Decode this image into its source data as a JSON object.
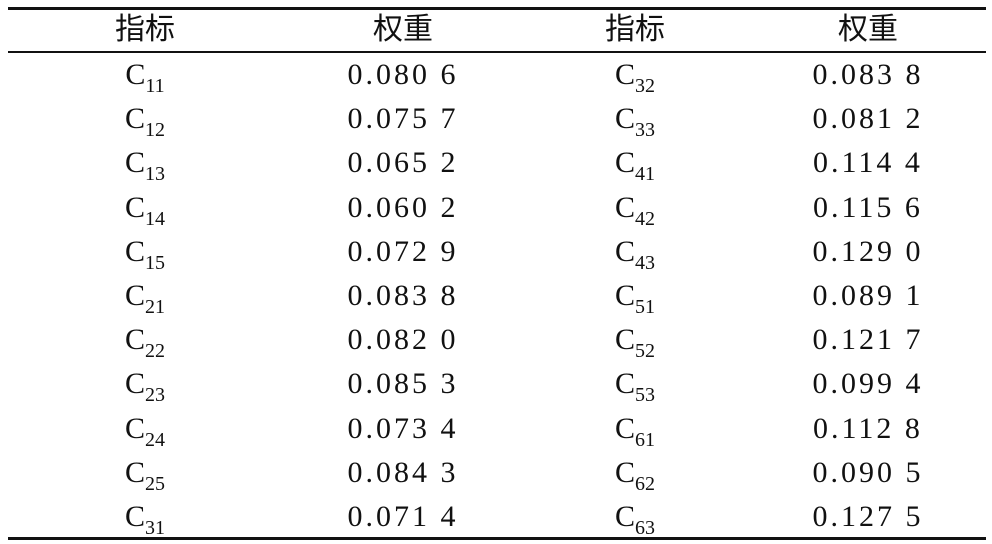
{
  "table": {
    "header": [
      "指标",
      "权重",
      "指标",
      "权重"
    ],
    "rows": [
      [
        {
          "base": "C",
          "sub": "11"
        },
        "0.080 6",
        {
          "base": "C",
          "sub": "32"
        },
        "0.083 8"
      ],
      [
        {
          "base": "C",
          "sub": "12"
        },
        "0.075 7",
        {
          "base": "C",
          "sub": "33"
        },
        "0.081 2"
      ],
      [
        {
          "base": "C",
          "sub": "13"
        },
        "0.065 2",
        {
          "base": "C",
          "sub": "41"
        },
        "0.114 4"
      ],
      [
        {
          "base": "C",
          "sub": "14"
        },
        "0.060 2",
        {
          "base": "C",
          "sub": "42"
        },
        "0.115 6"
      ],
      [
        {
          "base": "C",
          "sub": "15"
        },
        "0.072 9",
        {
          "base": "C",
          "sub": "43"
        },
        "0.129 0"
      ],
      [
        {
          "base": "C",
          "sub": "21"
        },
        "0.083 8",
        {
          "base": "C",
          "sub": "51"
        },
        "0.089 1"
      ],
      [
        {
          "base": "C",
          "sub": "22"
        },
        "0.082 0",
        {
          "base": "C",
          "sub": "52"
        },
        "0.121 7"
      ],
      [
        {
          "base": "C",
          "sub": "23"
        },
        "0.085 3",
        {
          "base": "C",
          "sub": "53"
        },
        "0.099 4"
      ],
      [
        {
          "base": "C",
          "sub": "24"
        },
        "0.073 4",
        {
          "base": "C",
          "sub": "61"
        },
        "0.112 8"
      ],
      [
        {
          "base": "C",
          "sub": "25"
        },
        "0.084 3",
        {
          "base": "C",
          "sub": "62"
        },
        "0.090 5"
      ],
      [
        {
          "base": "C",
          "sub": "31"
        },
        "0.071 4",
        {
          "base": "C",
          "sub": "63"
        },
        "0.127 5"
      ]
    ]
  }
}
